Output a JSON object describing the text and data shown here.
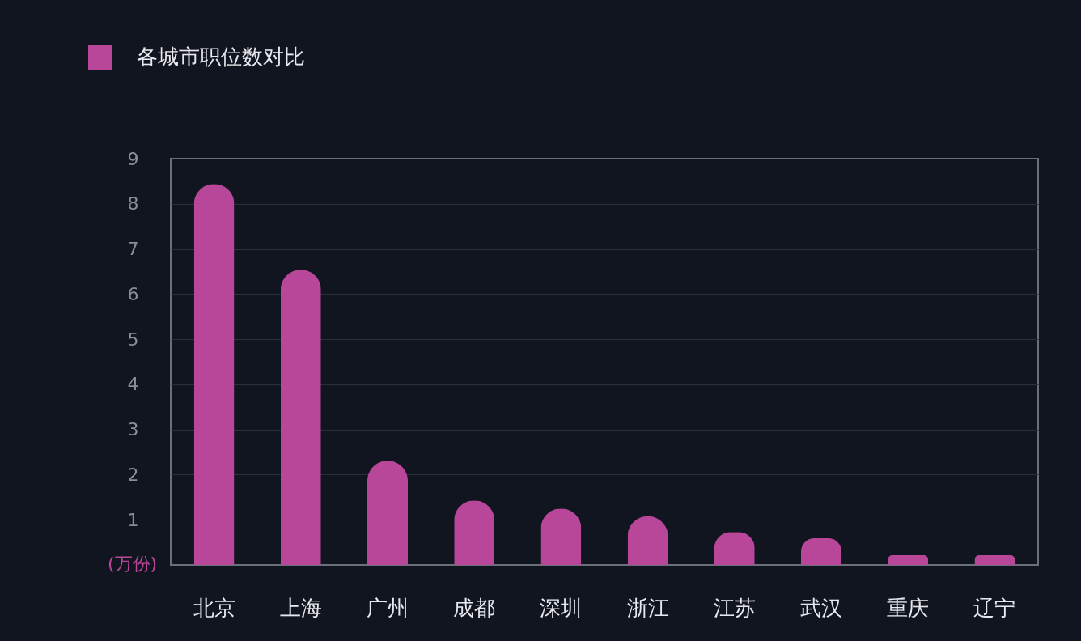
{
  "chart_data": {
    "type": "bar",
    "categories": [
      "北京",
      "上海",
      "广州",
      "成都",
      "深圳",
      "浙江",
      "江苏",
      "武汉",
      "重庆",
      "辽宁"
    ],
    "series": [
      {
        "name": "各城市职位数对比",
        "color": "#b8479a",
        "values": [
          8.44,
          6.54,
          2.31,
          1.43,
          1.25,
          1.08,
          0.73,
          0.59,
          0.22,
          0.22
        ]
      }
    ],
    "ylabel": "(万份)",
    "ylim": [
      0,
      9
    ],
    "yticks": [
      1,
      2,
      3,
      4,
      5,
      6,
      7,
      8,
      9
    ],
    "grid": "y",
    "legend": "top left"
  }
}
